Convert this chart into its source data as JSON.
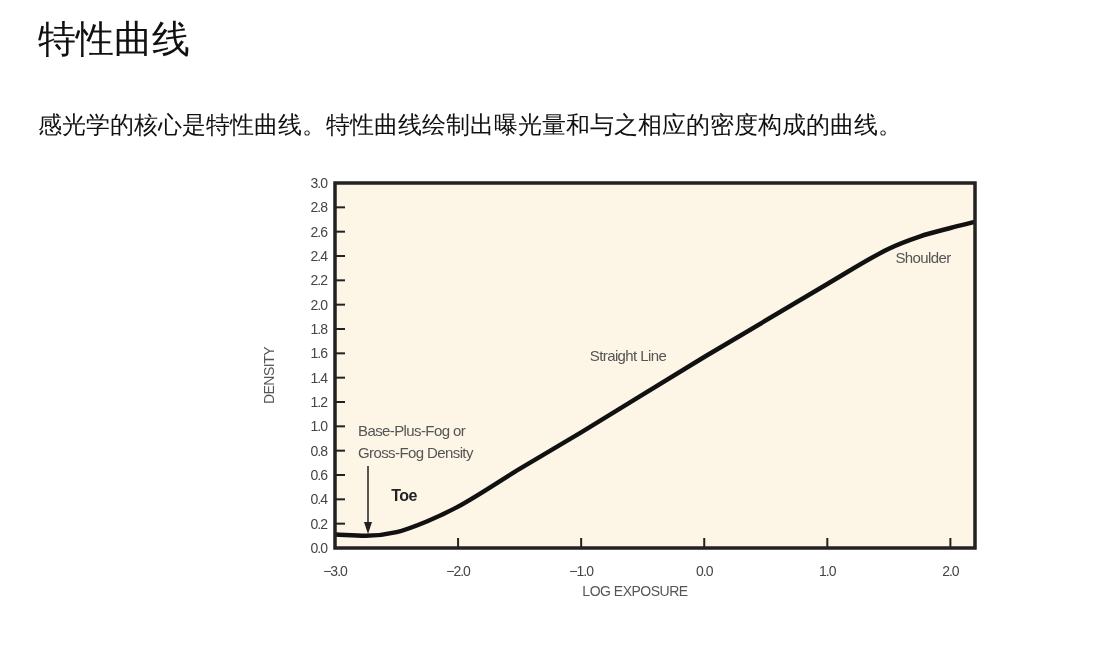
{
  "chart_data": {
    "type": "line",
    "title": "特性曲线",
    "subtitle": "感光学的核心是特性曲线。特性曲线绘制出曝光量和与之相应的密度构成的曲线。",
    "xlabel": "LOG EXPOSURE",
    "ylabel": "DENSITY",
    "x": [
      -3.0,
      -2.75,
      -2.5,
      -2.25,
      -2.0,
      -1.5,
      -1.0,
      0.0,
      1.0,
      1.5,
      1.75,
      2.0,
      2.2
    ],
    "values": [
      0.11,
      0.1,
      0.13,
      0.22,
      0.34,
      0.65,
      0.95,
      1.57,
      2.17,
      2.46,
      2.56,
      2.63,
      2.68
    ],
    "color": "#111111",
    "xlim": [
      -3.0,
      2.2
    ],
    "ylim": [
      0.0,
      3.0
    ],
    "xticks": [
      {
        "value": -3,
        "label": "−3.0"
      },
      {
        "value": -2,
        "label": "−2.0"
      },
      {
        "value": -1,
        "label": "−1.0"
      },
      {
        "value": 0,
        "label": "0.0"
      },
      {
        "value": 1,
        "label": "1.0"
      },
      {
        "value": 2,
        "label": "2.0"
      }
    ],
    "yticks": [
      {
        "value": 0,
        "label": "0.0"
      },
      {
        "value": 0.2,
        "label": "0.2"
      },
      {
        "value": 0.4,
        "label": "0.4"
      },
      {
        "value": 0.6,
        "label": "0.6"
      },
      {
        "value": 0.8,
        "label": "0.8"
      },
      {
        "value": 1,
        "label": "1.0"
      },
      {
        "value": 1.2,
        "label": "1.2"
      },
      {
        "value": 1.4,
        "label": "1.4"
      },
      {
        "value": 1.6,
        "label": "1.6"
      },
      {
        "value": 1.8,
        "label": "1.8"
      },
      {
        "value": 2,
        "label": "2.0"
      },
      {
        "value": 2.2,
        "label": "2.2"
      },
      {
        "value": 2.4,
        "label": "2.4"
      },
      {
        "value": 2.6,
        "label": "2.6"
      },
      {
        "value": 2.8,
        "label": "2.8"
      },
      {
        "value": 3,
        "label": "3.0"
      }
    ],
    "annotations": [
      "Base-Plus-Fog or\nGross-Fog Density",
      "Toe",
      "Straight Line",
      "Shoulder"
    ]
  }
}
